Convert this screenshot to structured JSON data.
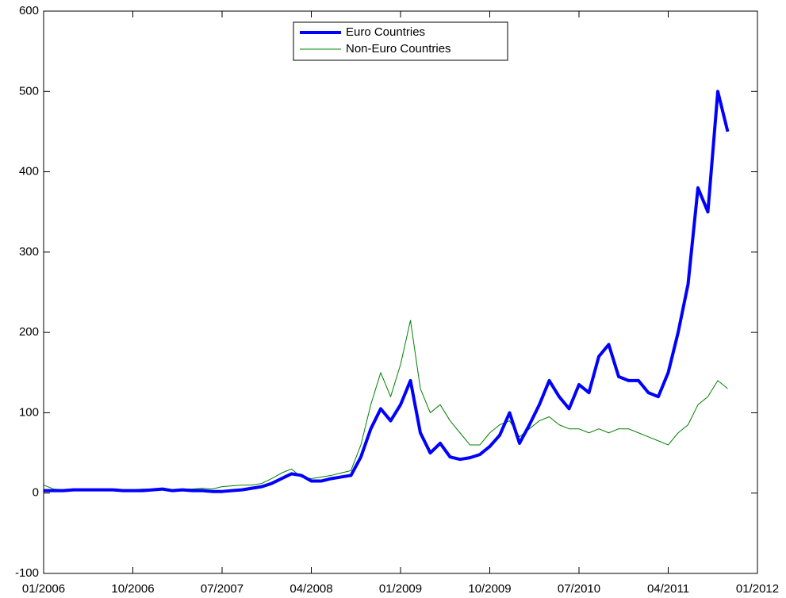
{
  "chart_data": {
    "type": "line",
    "x": [
      "2006-01",
      "2006-02",
      "2006-03",
      "2006-04",
      "2006-05",
      "2006-06",
      "2006-07",
      "2006-08",
      "2006-09",
      "2006-10",
      "2006-11",
      "2006-12",
      "2007-01",
      "2007-02",
      "2007-03",
      "2007-04",
      "2007-05",
      "2007-06",
      "2007-07",
      "2007-08",
      "2007-09",
      "2007-10",
      "2007-11",
      "2007-12",
      "2008-01",
      "2008-02",
      "2008-03",
      "2008-04",
      "2008-05",
      "2008-06",
      "2008-07",
      "2008-08",
      "2008-09",
      "2008-10",
      "2008-11",
      "2008-12",
      "2009-01",
      "2009-02",
      "2009-03",
      "2009-04",
      "2009-05",
      "2009-06",
      "2009-07",
      "2009-08",
      "2009-09",
      "2009-10",
      "2009-11",
      "2009-12",
      "2010-01",
      "2010-02",
      "2010-03",
      "2010-04",
      "2010-05",
      "2010-06",
      "2010-07",
      "2010-08",
      "2010-09",
      "2010-10",
      "2010-11",
      "2010-12",
      "2011-01",
      "2011-02",
      "2011-03",
      "2011-04",
      "2011-05",
      "2011-06",
      "2011-07",
      "2011-08",
      "2011-09",
      "2011-10"
    ],
    "series": [
      {
        "name": "Euro Countries",
        "color": "#0000ff",
        "width": 4,
        "values": [
          3,
          3,
          3,
          4,
          4,
          4,
          4,
          4,
          3,
          3,
          3,
          4,
          5,
          3,
          4,
          3,
          3,
          2,
          2,
          3,
          4,
          6,
          8,
          12,
          18,
          24,
          22,
          15,
          15,
          18,
          20,
          22,
          45,
          80,
          105,
          90,
          110,
          140,
          75,
          50,
          62,
          45,
          42,
          44,
          48,
          58,
          72,
          100,
          62,
          85,
          110,
          140,
          120,
          105,
          135,
          125,
          170,
          185,
          145,
          140,
          140,
          125,
          120,
          150,
          200,
          260,
          380,
          350,
          500,
          450
        ]
      },
      {
        "name": "Non-Euro Countries",
        "color": "#008000",
        "width": 1,
        "values": [
          10,
          5,
          4,
          5,
          5,
          4,
          4,
          4,
          4,
          4,
          5,
          5,
          5,
          4,
          5,
          5,
          6,
          5,
          8,
          9,
          10,
          10,
          12,
          18,
          25,
          30,
          20,
          18,
          20,
          22,
          25,
          28,
          60,
          110,
          150,
          120,
          160,
          215,
          130,
          100,
          110,
          90,
          75,
          60,
          60,
          75,
          85,
          90,
          70,
          80,
          90,
          95,
          85,
          80,
          80,
          75,
          80,
          75,
          80,
          80,
          75,
          70,
          65,
          60,
          75,
          85,
          110,
          120,
          140,
          130
        ]
      }
    ],
    "xlim": [
      "2006-01",
      "2012-01"
    ],
    "xticks": [
      {
        "value": "2006-01",
        "label": "01/2006"
      },
      {
        "value": "2006-10",
        "label": "10/2006"
      },
      {
        "value": "2007-07",
        "label": "07/2007"
      },
      {
        "value": "2008-04",
        "label": "04/2008"
      },
      {
        "value": "2009-01",
        "label": "01/2009"
      },
      {
        "value": "2009-10",
        "label": "10/2009"
      },
      {
        "value": "2010-07",
        "label": "07/2010"
      },
      {
        "value": "2011-04",
        "label": "04/2011"
      },
      {
        "value": "2012-01",
        "label": "01/2012"
      }
    ],
    "ylim": [
      -100,
      600
    ],
    "yticks": [
      -100,
      0,
      100,
      200,
      300,
      400,
      500,
      600
    ],
    "legend": "top"
  }
}
